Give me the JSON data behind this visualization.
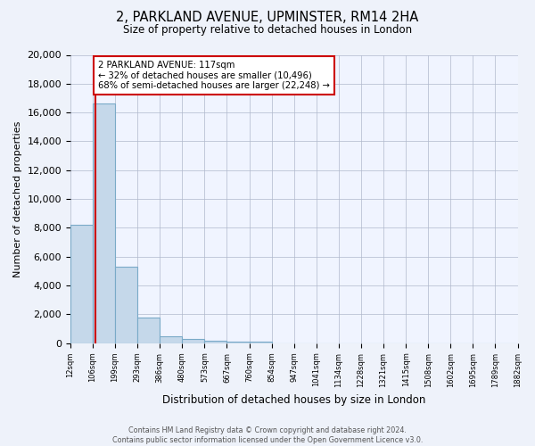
{
  "title": "2, PARKLAND AVENUE, UPMINSTER, RM14 2HA",
  "subtitle": "Size of property relative to detached houses in London",
  "xlabel": "Distribution of detached houses by size in London",
  "ylabel": "Number of detached properties",
  "bar_values": [
    8200,
    16600,
    5300,
    1800,
    480,
    270,
    150,
    110,
    110,
    0,
    0,
    0,
    0,
    0,
    0,
    0,
    0,
    0,
    0,
    0
  ],
  "tick_labels": [
    "12sqm",
    "106sqm",
    "199sqm",
    "293sqm",
    "386sqm",
    "480sqm",
    "573sqm",
    "667sqm",
    "760sqm",
    "854sqm",
    "947sqm",
    "1041sqm",
    "1134sqm",
    "1228sqm",
    "1321sqm",
    "1415sqm",
    "1508sqm",
    "1602sqm",
    "1695sqm",
    "1789sqm",
    "1882sqm"
  ],
  "bar_color": "#c5d8ea",
  "bar_edge_color": "#7aaac8",
  "vline_x": 1.12,
  "vline_color": "#cc0000",
  "annotation_line1": "2 PARKLAND AVENUE: 117sqm",
  "annotation_line2": "← 32% of detached houses are smaller (10,496)",
  "annotation_line3": "68% of semi-detached houses are larger (22,248) →",
  "annotation_box_edge": "#cc0000",
  "annotation_box_face": "#ffffff",
  "ylim": [
    0,
    20000
  ],
  "yticks": [
    0,
    2000,
    4000,
    6000,
    8000,
    10000,
    12000,
    14000,
    16000,
    18000,
    20000
  ],
  "background_color": "#eef2fa",
  "plot_background_color": "#f0f4ff",
  "grid_color": "#b0b8cc",
  "footer_line1": "Contains HM Land Registry data © Crown copyright and database right 2024.",
  "footer_line2": "Contains public sector information licensed under the Open Government Licence v3.0."
}
